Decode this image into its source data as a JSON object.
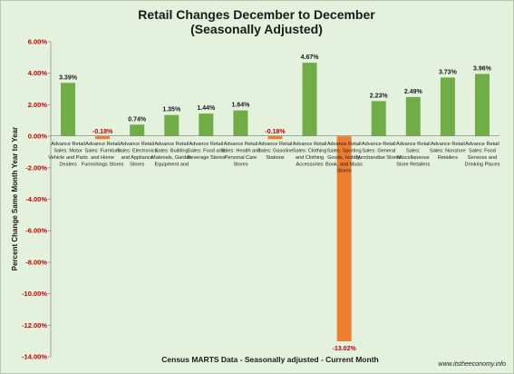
{
  "chart_data": {
    "type": "bar",
    "title": "Retail Changes December to December",
    "subtitle": "(Seasonally Adjusted)",
    "xlabel": "Census MARTS Data - Seasonally adjusted - Current Month",
    "ylabel": "Percent Change Same Month Year to Year",
    "ylim": [
      -14,
      6
    ],
    "y_ticks": [
      "6.00%",
      "4.00%",
      "2.00%",
      "0.00%",
      "-2.00%",
      "-4.00%",
      "-6.00%",
      "-8.00%",
      "-10.00%",
      "-12.00%",
      "-14.00%"
    ],
    "grid": false,
    "legend": "none",
    "categories": [
      "Advance Retail Sales: Motor Vehicle and Parts Dealers",
      "Advance Retail Sales: Furniture and Home Furnishings Stores",
      "Advance Retail Sales: Electronics and Appliance Stores",
      "Advance Retail Sales: Building Materials, Garden Equipment and",
      "Advance Retail Sales: Food and Beverage Stores",
      "Advance Retail Sales: Health and Personal Care Stores",
      "Advance Retail Sales: Gasoline Stations",
      "Advance Retail Sales: Clothing and Clothing Accessories",
      "Advance Retail Sales: Sporting Goods, Hobby, Book, and Music Stores",
      "Advance Retail Sales: General Merchandise Stores",
      "Advance Retail Sales: Miscellaneous Store Retailers",
      "Advance Retail Sales: Nonstore Retailers",
      "Advance Retail Sales: Food Services and Drinking Places"
    ],
    "values": [
      3.39,
      -0.18,
      0.74,
      1.35,
      1.44,
      1.64,
      -0.18,
      4.67,
      -13.02,
      2.23,
      2.49,
      3.73,
      3.96
    ],
    "value_labels": [
      "3.39%",
      "-0.18%",
      "0.74%",
      "1.35%",
      "1.44%",
      "1.64%",
      "-0.18%",
      "4.67%",
      "-13.02%",
      "2.23%",
      "2.49%",
      "3.73%",
      "3.96%"
    ],
    "colors": {
      "positive": "#70ad47",
      "negative": "#ed7d31",
      "negative_label": "#c00000",
      "background": "#e4f1dd"
    }
  },
  "footer": "www.itstheeconomy.info"
}
